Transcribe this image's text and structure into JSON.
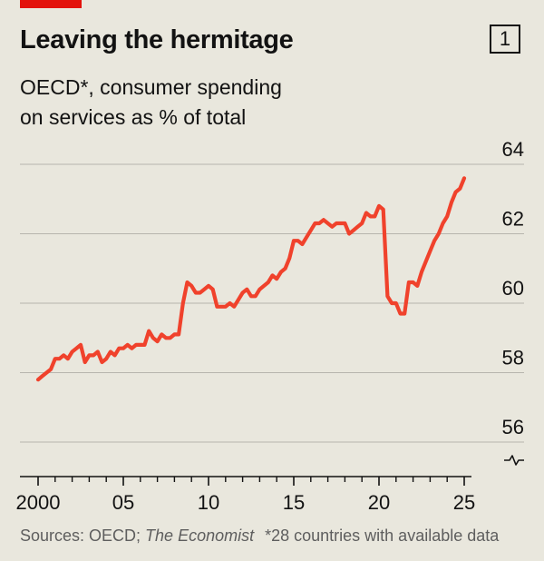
{
  "header": {
    "title": "Leaving the hermitage",
    "chart_number": "1",
    "subtitle_line1": "OECD*, consumer spending",
    "subtitle_line2": "on services as % of total",
    "accent_color": "#e3120b"
  },
  "footer": {
    "sources_prefix": "Sources: OECD; ",
    "sources_publication": "The Economist",
    "note": "*28 countries with available data"
  },
  "chart_data": {
    "type": "line",
    "title": "Leaving the hermitage",
    "subtitle": "OECD*, consumer spending on services as % of total",
    "xlabel": "",
    "ylabel": "",
    "xlim": [
      1999.5,
      2025.5
    ],
    "ylim": [
      55.5,
      64.5
    ],
    "y_axis_side": "right",
    "y_axis_break": true,
    "grid": "horizontal",
    "y_ticks": [
      56,
      58,
      60,
      62,
      64
    ],
    "y_tick_labels": [
      "56",
      "58",
      "60",
      "62",
      "64"
    ],
    "x_major_ticks": [
      2000,
      2005,
      2010,
      2015,
      2020,
      2025
    ],
    "x_tick_labels": [
      "2000",
      "05",
      "10",
      "15",
      "20",
      "25"
    ],
    "x_minor_ticks": [
      2001,
      2002,
      2003,
      2004,
      2006,
      2007,
      2008,
      2009,
      2011,
      2012,
      2013,
      2014,
      2016,
      2017,
      2018,
      2019,
      2021,
      2022,
      2023,
      2024
    ],
    "series": [
      {
        "color": "#f0422c",
        "x": [
          2000.0,
          2000.25,
          2000.5,
          2000.75,
          2001.0,
          2001.25,
          2001.5,
          2001.75,
          2002.0,
          2002.25,
          2002.5,
          2002.75,
          2003.0,
          2003.25,
          2003.5,
          2003.75,
          2004.0,
          2004.25,
          2004.5,
          2004.75,
          2005.0,
          2005.25,
          2005.5,
          2005.75,
          2006.0,
          2006.25,
          2006.5,
          2006.75,
          2007.0,
          2007.25,
          2007.5,
          2007.75,
          2008.0,
          2008.25,
          2008.5,
          2008.75,
          2009.0,
          2009.25,
          2009.5,
          2009.75,
          2010.0,
          2010.25,
          2010.5,
          2010.75,
          2011.0,
          2011.25,
          2011.5,
          2011.75,
          2012.0,
          2012.25,
          2012.5,
          2012.75,
          2013.0,
          2013.25,
          2013.5,
          2013.75,
          2014.0,
          2014.25,
          2014.5,
          2014.75,
          2015.0,
          2015.25,
          2015.5,
          2015.75,
          2016.0,
          2016.25,
          2016.5,
          2016.75,
          2017.0,
          2017.25,
          2017.5,
          2017.75,
          2018.0,
          2018.25,
          2018.5,
          2018.75,
          2019.0,
          2019.25,
          2019.5,
          2019.75,
          2020.0,
          2020.25,
          2020.5,
          2020.75,
          2021.0,
          2021.25,
          2021.5,
          2021.75,
          2022.0,
          2022.25,
          2022.5,
          2022.75,
          2023.0,
          2023.25,
          2023.5,
          2023.75,
          2024.0,
          2024.25,
          2024.5,
          2024.75,
          2025.0
        ],
        "y": [
          57.8,
          57.9,
          58.0,
          58.1,
          58.4,
          58.4,
          58.5,
          58.4,
          58.6,
          58.7,
          58.8,
          58.3,
          58.5,
          58.5,
          58.6,
          58.3,
          58.4,
          58.6,
          58.5,
          58.7,
          58.7,
          58.8,
          58.7,
          58.8,
          58.8,
          58.8,
          59.2,
          59.0,
          58.9,
          59.1,
          59.0,
          59.0,
          59.1,
          59.1,
          60.0,
          60.6,
          60.5,
          60.3,
          60.3,
          60.4,
          60.5,
          60.4,
          59.9,
          59.9,
          59.9,
          60.0,
          59.9,
          60.1,
          60.3,
          60.4,
          60.2,
          60.2,
          60.4,
          60.5,
          60.6,
          60.8,
          60.7,
          60.9,
          61.0,
          61.3,
          61.8,
          61.8,
          61.7,
          61.9,
          62.1,
          62.3,
          62.3,
          62.4,
          62.3,
          62.2,
          62.3,
          62.3,
          62.3,
          62.0,
          62.1,
          62.2,
          62.3,
          62.6,
          62.5,
          62.5,
          62.8,
          62.7,
          60.2,
          60.0,
          60.0,
          59.7,
          59.7,
          60.6,
          60.6,
          60.5,
          60.9,
          61.2,
          61.5,
          61.8,
          62.0,
          62.3,
          62.5,
          62.9,
          63.2,
          63.3,
          63.6
        ]
      }
    ]
  }
}
